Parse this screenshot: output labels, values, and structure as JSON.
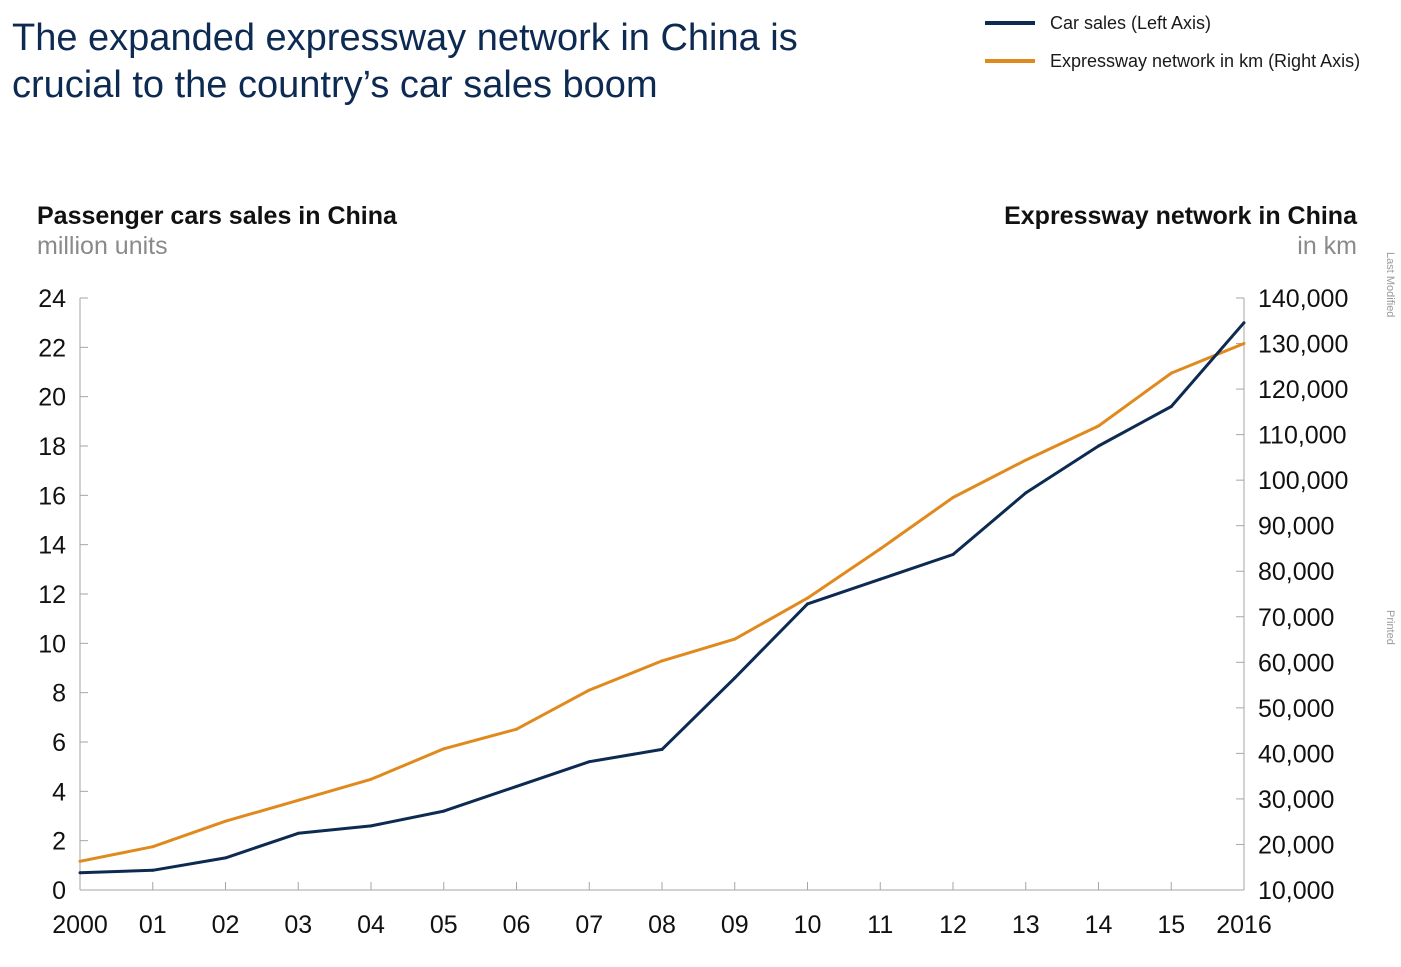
{
  "header": {
    "title_line1": "The expanded expressway network in China is",
    "title_line2": "crucial to the country’s car sales boom"
  },
  "side_notes": {
    "last_modified": "Last Modified",
    "printed": "Printed"
  },
  "colors": {
    "car_sales": "#0d2a52",
    "expressway": "#e08a1e",
    "axis": "#a6a6a6"
  },
  "chart_data": {
    "type": "line",
    "x": [
      "2000",
      "01",
      "02",
      "03",
      "04",
      "05",
      "06",
      "07",
      "08",
      "09",
      "10",
      "11",
      "12",
      "13",
      "14",
      "15",
      "2016"
    ],
    "left_axis": {
      "title": "Passenger cars sales in China",
      "unit": "million units",
      "ylim": [
        0,
        24
      ],
      "ticks": [
        0,
        2,
        4,
        6,
        8,
        10,
        12,
        14,
        16,
        18,
        20,
        22,
        24
      ],
      "tick_labels": [
        "0",
        "2",
        "4",
        "6",
        "8",
        "10",
        "12",
        "14",
        "16",
        "18",
        "20",
        "22",
        "24"
      ]
    },
    "right_axis": {
      "title": "Expressway network in China",
      "unit": "in km",
      "ylim": [
        10000,
        140000
      ],
      "ticks": [
        10000,
        20000,
        30000,
        40000,
        50000,
        60000,
        70000,
        80000,
        90000,
        100000,
        110000,
        120000,
        130000,
        140000
      ],
      "tick_labels": [
        "10,000",
        "20,000",
        "30,000",
        "40,000",
        "50,000",
        "60,000",
        "70,000",
        "80,000",
        "90,000",
        "100,000",
        "110,000",
        "120,000",
        "130,000",
        "140,000"
      ]
    },
    "legend_position": "top-right",
    "grid": false,
    "series": [
      {
        "name": "Car sales (Left Axis)",
        "axis": "left",
        "values": [
          0.7,
          0.8,
          1.3,
          2.3,
          2.6,
          3.2,
          4.2,
          5.2,
          5.7,
          8.6,
          11.6,
          12.6,
          13.6,
          16.1,
          18.0,
          19.6,
          23.0
        ]
      },
      {
        "name": "Expressway network in km (Right Axis)",
        "axis": "right",
        "values": [
          16300,
          19500,
          25100,
          29700,
          34300,
          41000,
          45300,
          53900,
          60300,
          65100,
          74100,
          84900,
          96200,
          104400,
          111900,
          123500,
          130000
        ]
      }
    ]
  }
}
